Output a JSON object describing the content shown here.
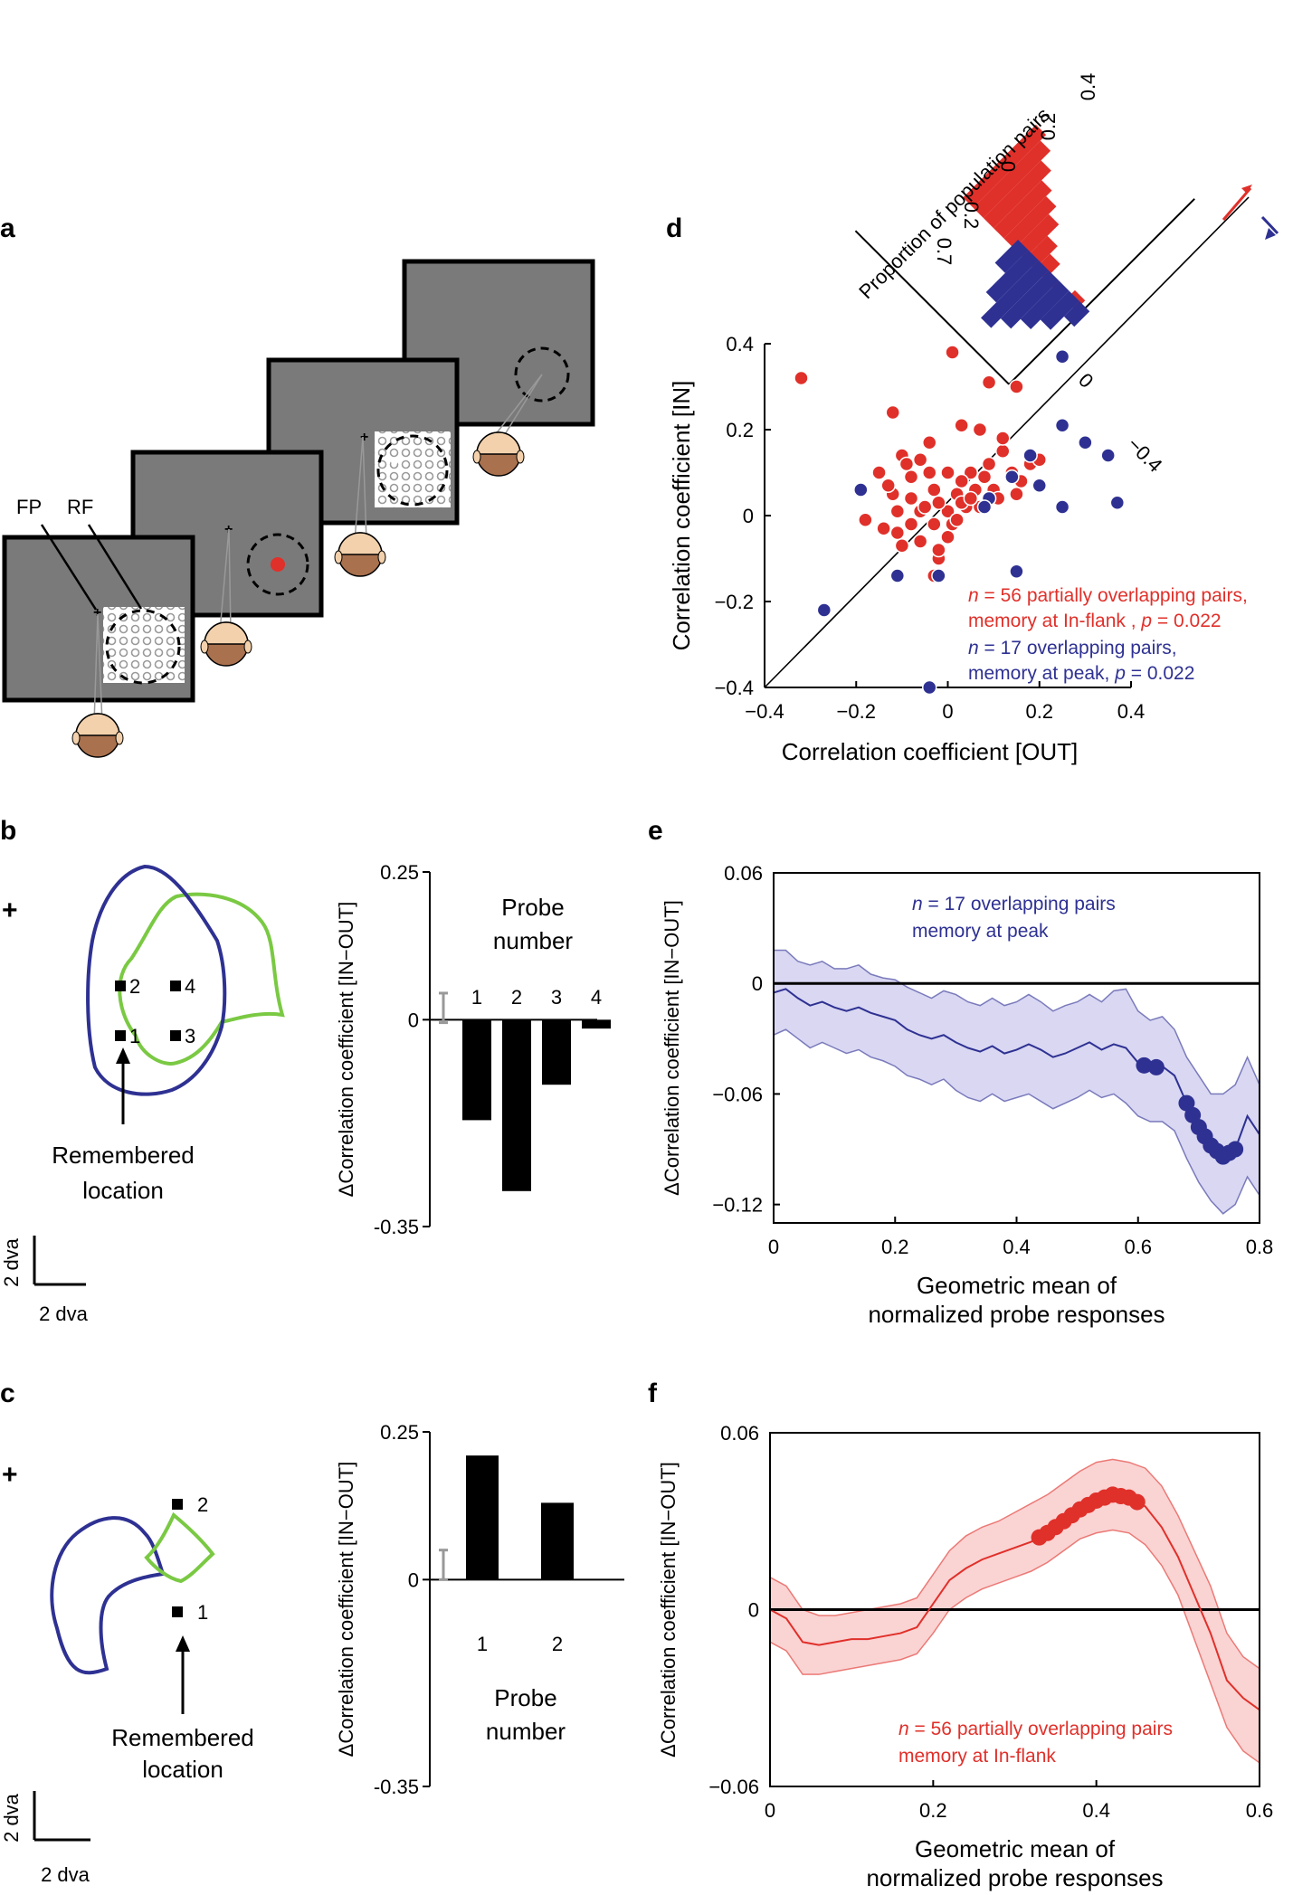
{
  "panels": {
    "a": {
      "letter": "a",
      "labels": {
        "fp": "FP",
        "rf": "RF"
      }
    },
    "b": {
      "letter": "b",
      "probe_labels": [
        "2",
        "4",
        "1",
        "3"
      ],
      "remembered": [
        "Remembered",
        "location"
      ],
      "scale": "2 dva"
    },
    "c": {
      "letter": "c",
      "probe_labels": [
        "2",
        "1"
      ],
      "remembered": [
        "Remembered",
        "location"
      ],
      "scale": "2 dva"
    },
    "d": {
      "letter": "d"
    },
    "e": {
      "letter": "e"
    },
    "f": {
      "letter": "f"
    }
  },
  "chart_data": [
    {
      "id": "b_bar",
      "type": "bar",
      "title": "Probe number",
      "ylabel": "ΔCorrelation coefficient [IN−OUT]",
      "categories": [
        "1",
        "2",
        "3",
        "4"
      ],
      "values": [
        -0.17,
        -0.29,
        -0.11,
        -0.015
      ],
      "ylim": [
        -0.35,
        0.25
      ],
      "yticks": [
        "0.25",
        "0",
        "-0.35"
      ],
      "errorbar": {
        "center": 0.02,
        "half": 0.025
      }
    },
    {
      "id": "c_bar",
      "type": "bar",
      "title": "Probe number",
      "ylabel": "ΔCorrelation coefficient [IN−OUT]",
      "categories": [
        "1",
        "2"
      ],
      "values": [
        0.21,
        0.13
      ],
      "ylim": [
        -0.35,
        0.25
      ],
      "yticks": [
        "0.25",
        "0",
        "-0.35"
      ],
      "errorbar": {
        "center": 0.025,
        "half": 0.025
      }
    },
    {
      "id": "d_scatter",
      "type": "scatter",
      "xlabel": "Correlation coefficient [OUT]",
      "ylabel": "Correlation coefficient [IN]",
      "xlim": [
        -0.4,
        0.4
      ],
      "ylim": [
        -0.4,
        0.4
      ],
      "xticks": [
        "−0.4",
        "−0.2",
        "0",
        "0.2",
        "0.4"
      ],
      "yticks": [
        "0.4",
        "0.2",
        "0",
        "−0.2",
        "−0.4"
      ],
      "legend": {
        "red_n": "n",
        "red_text": " = 56 partially overlapping pairs,",
        "red_line2": "memory at In-flank , ",
        "red_p": "p",
        "red_pval": " = 0.022",
        "blue_n": "n",
        "blue_text": " = 17 overlapping pairs,",
        "blue_line2": "memory at peak, ",
        "blue_p": "p",
        "blue_pval": " = 0.022"
      },
      "histogram": {
        "title": "Proportion of population pairs",
        "ticks_top": [
          "0",
          "0.2",
          "0.4"
        ],
        "ticks_bottom": [
          "0.2",
          "0.7"
        ],
        "diff_ticks": [
          "0",
          "−0.4"
        ],
        "red": [
          0.05,
          0,
          0.03,
          0.08,
          0.12,
          0.18,
          0.22,
          0.25,
          0.3,
          0.35,
          0.38
        ],
        "blue": [
          0.08,
          0.15,
          0.2,
          0.25,
          0.3,
          0.22,
          0.12
        ]
      },
      "series": [
        {
          "name": "partially overlapping pairs",
          "color": "#e0302a",
          "points": [
            [
              -0.32,
              0.32
            ],
            [
              0.01,
              0.38
            ],
            [
              0.09,
              0.31
            ],
            [
              0.15,
              0.3
            ],
            [
              -0.12,
              0.24
            ],
            [
              0.03,
              0.21
            ],
            [
              0.07,
              0.2
            ],
            [
              -0.04,
              0.17
            ],
            [
              -0.1,
              0.14
            ],
            [
              -0.06,
              0.13
            ],
            [
              0.12,
              0.15
            ],
            [
              0.18,
              0.12
            ],
            [
              -0.15,
              0.1
            ],
            [
              0,
              0.1
            ],
            [
              0.05,
              0.1
            ],
            [
              0.09,
              0.12
            ],
            [
              0.16,
              0.08
            ],
            [
              -0.12,
              0.05
            ],
            [
              -0.08,
              0.04
            ],
            [
              -0.03,
              0.06
            ],
            [
              0.02,
              0.05
            ],
            [
              0.06,
              0.06
            ],
            [
              0.1,
              0.06
            ],
            [
              -0.11,
              0.01
            ],
            [
              -0.06,
              0.01
            ],
            [
              0,
              0.01
            ],
            [
              0.04,
              0.02
            ],
            [
              -0.18,
              -0.01
            ],
            [
              -0.14,
              -0.03
            ],
            [
              -0.08,
              -0.02
            ],
            [
              -0.03,
              -0.02
            ],
            [
              0,
              -0.05
            ],
            [
              -0.1,
              -0.07
            ],
            [
              -0.06,
              -0.06
            ],
            [
              -0.02,
              -0.1
            ],
            [
              0.03,
              0.03
            ],
            [
              0.14,
              0.1
            ],
            [
              0.2,
              0.13
            ],
            [
              0.12,
              0.18
            ],
            [
              -0.13,
              0.07
            ],
            [
              -0.05,
              0.02
            ],
            [
              0.01,
              -0.02
            ],
            [
              -0.04,
              0.1
            ],
            [
              -0.08,
              0.09
            ],
            [
              0.07,
              0.02
            ],
            [
              0.15,
              0.05
            ],
            [
              0.03,
              0.08
            ],
            [
              -0.02,
              0.03
            ],
            [
              -0.09,
              0.12
            ],
            [
              0.11,
              0.04
            ],
            [
              -0.02,
              -0.08
            ],
            [
              0.02,
              -0.01
            ],
            [
              -0.11,
              -0.04
            ],
            [
              0.05,
              0.04
            ],
            [
              0.08,
              0.09
            ],
            [
              -0.03,
              -0.14
            ]
          ]
        },
        {
          "name": "overlapping pairs",
          "color": "#2e3192",
          "points": [
            [
              0.25,
              0.37
            ],
            [
              0.25,
              0.21
            ],
            [
              0.3,
              0.17
            ],
            [
              0.35,
              0.14
            ],
            [
              0.18,
              0.14
            ],
            [
              0.14,
              0.09
            ],
            [
              0.2,
              0.07
            ],
            [
              0.09,
              0.04
            ],
            [
              -0.19,
              0.06
            ],
            [
              0.37,
              0.03
            ],
            [
              0.25,
              0.02
            ],
            [
              0.08,
              0.02
            ],
            [
              -0.11,
              -0.14
            ],
            [
              -0.02,
              -0.14
            ],
            [
              0.15,
              -0.13
            ],
            [
              -0.27,
              -0.22
            ],
            [
              -0.04,
              -0.4
            ]
          ]
        }
      ]
    },
    {
      "id": "e_line",
      "type": "line",
      "xlabel": [
        "Geometric mean of",
        "normalized probe responses"
      ],
      "ylabel": "ΔCorrelation coefficient [IN−OUT]",
      "xlim": [
        0,
        0.8
      ],
      "ylim": [
        -0.13,
        0.06
      ],
      "xticks": [
        "0",
        "0.2",
        "0.4",
        "0.6",
        "0.8"
      ],
      "yticks": [
        "0.06",
        "0",
        "−0.06",
        "−0.12"
      ],
      "annotation": {
        "n": "n",
        "line1": " = 17 overlapping pairs",
        "line2": "memory at peak"
      },
      "x": [
        0,
        0.02,
        0.04,
        0.06,
        0.08,
        0.1,
        0.12,
        0.14,
        0.16,
        0.18,
        0.2,
        0.22,
        0.24,
        0.26,
        0.28,
        0.3,
        0.32,
        0.34,
        0.36,
        0.38,
        0.4,
        0.42,
        0.44,
        0.46,
        0.48,
        0.5,
        0.52,
        0.54,
        0.56,
        0.58,
        0.6,
        0.62,
        0.64,
        0.66,
        0.68,
        0.7,
        0.72,
        0.74,
        0.76,
        0.78,
        0.8
      ],
      "y": [
        -0.005,
        -0.003,
        -0.008,
        -0.012,
        -0.01,
        -0.013,
        -0.015,
        -0.013,
        -0.016,
        -0.018,
        -0.02,
        -0.025,
        -0.028,
        -0.03,
        -0.028,
        -0.032,
        -0.035,
        -0.037,
        -0.034,
        -0.038,
        -0.036,
        -0.033,
        -0.036,
        -0.04,
        -0.038,
        -0.035,
        -0.032,
        -0.036,
        -0.033,
        -0.035,
        -0.043,
        -0.046,
        -0.045,
        -0.05,
        -0.065,
        -0.078,
        -0.088,
        -0.094,
        -0.09,
        -0.072,
        -0.082
      ],
      "band_upper": [
        0.018,
        0.018,
        0.012,
        0.01,
        0.012,
        0.008,
        0.008,
        0.01,
        0.005,
        0.003,
        0.002,
        -0.002,
        -0.005,
        -0.008,
        -0.004,
        -0.006,
        -0.01,
        -0.012,
        -0.008,
        -0.012,
        -0.01,
        -0.006,
        -0.01,
        -0.015,
        -0.012,
        -0.01,
        -0.006,
        -0.01,
        -0.004,
        -0.003,
        -0.015,
        -0.02,
        -0.018,
        -0.025,
        -0.04,
        -0.05,
        -0.06,
        -0.06,
        -0.055,
        -0.04,
        -0.055
      ],
      "band_lower": [
        -0.028,
        -0.025,
        -0.03,
        -0.035,
        -0.032,
        -0.035,
        -0.038,
        -0.036,
        -0.04,
        -0.042,
        -0.045,
        -0.05,
        -0.052,
        -0.055,
        -0.052,
        -0.058,
        -0.062,
        -0.064,
        -0.06,
        -0.064,
        -0.062,
        -0.06,
        -0.064,
        -0.068,
        -0.065,
        -0.062,
        -0.058,
        -0.062,
        -0.06,
        -0.065,
        -0.072,
        -0.075,
        -0.075,
        -0.08,
        -0.095,
        -0.108,
        -0.118,
        -0.125,
        -0.12,
        -0.105,
        -0.115
      ],
      "sig_x": [
        0.61,
        0.63,
        0.68,
        0.69,
        0.7,
        0.71,
        0.72,
        0.73,
        0.74,
        0.75,
        0.76
      ]
    },
    {
      "id": "f_line",
      "type": "line",
      "xlabel": [
        "Geometric mean of",
        "normalized probe responses"
      ],
      "ylabel": "ΔCorrelation coefficient [IN−OUT]",
      "xlim": [
        0,
        0.6
      ],
      "ylim": [
        -0.06,
        0.06
      ],
      "xticks": [
        "0",
        "0.2",
        "0.4",
        "0.6"
      ],
      "yticks": [
        "0.06",
        "0",
        "−0.06"
      ],
      "annotation": {
        "n": "n",
        "line1": " = 56 partially overlapping pairs",
        "line2": "memory at In-flank"
      },
      "x": [
        0,
        0.02,
        0.04,
        0.06,
        0.08,
        0.1,
        0.12,
        0.14,
        0.16,
        0.18,
        0.2,
        0.22,
        0.24,
        0.26,
        0.28,
        0.3,
        0.32,
        0.34,
        0.36,
        0.38,
        0.4,
        0.42,
        0.44,
        0.46,
        0.48,
        0.5,
        0.52,
        0.54,
        0.56,
        0.58,
        0.6
      ],
      "y": [
        0,
        -0.003,
        -0.011,
        -0.012,
        -0.011,
        -0.01,
        -0.01,
        -0.009,
        -0.008,
        -0.006,
        0.002,
        0.01,
        0.014,
        0.017,
        0.019,
        0.021,
        0.023,
        0.026,
        0.03,
        0.034,
        0.037,
        0.039,
        0.038,
        0.035,
        0.028,
        0.018,
        0.005,
        -0.008,
        -0.024,
        -0.03,
        -0.034
      ],
      "band_upper": [
        0.011,
        0.008,
        0,
        -0.002,
        -0.002,
        -0.001,
        0,
        0.001,
        0.002,
        0.004,
        0.012,
        0.02,
        0.025,
        0.028,
        0.03,
        0.033,
        0.036,
        0.039,
        0.043,
        0.047,
        0.05,
        0.051,
        0.05,
        0.048,
        0.042,
        0.032,
        0.02,
        0.008,
        -0.008,
        -0.016,
        -0.02
      ],
      "band_lower": [
        -0.011,
        -0.014,
        -0.022,
        -0.022,
        -0.021,
        -0.02,
        -0.019,
        -0.018,
        -0.017,
        -0.015,
        -0.008,
        0,
        0.004,
        0.007,
        0.009,
        0.011,
        0.013,
        0.016,
        0.02,
        0.024,
        0.026,
        0.027,
        0.026,
        0.022,
        0.015,
        0.005,
        -0.01,
        -0.025,
        -0.04,
        -0.048,
        -0.052
      ],
      "sig_x": [
        0.33,
        0.34,
        0.35,
        0.36,
        0.37,
        0.38,
        0.39,
        0.4,
        0.41,
        0.42,
        0.43,
        0.44,
        0.45
      ]
    }
  ]
}
